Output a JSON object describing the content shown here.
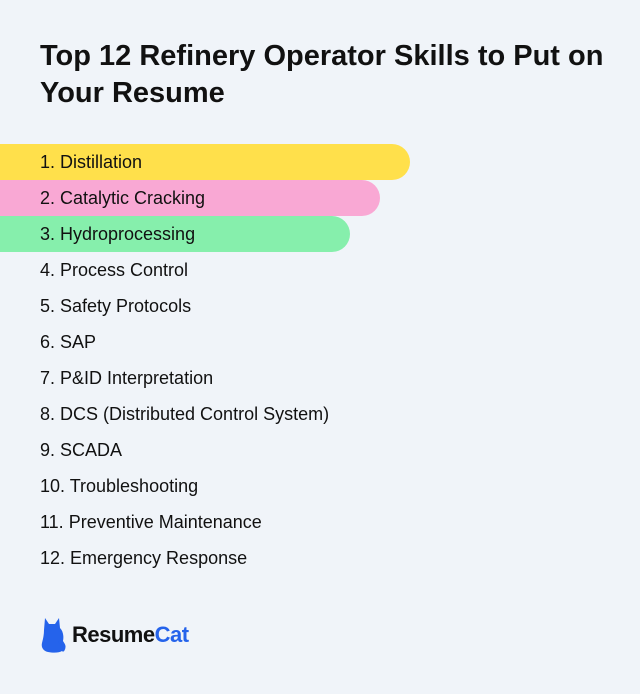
{
  "title": "Top 12 Refinery Operator Skills to Put on Your Resume",
  "skills": [
    "1. Distillation",
    "2. Catalytic Cracking",
    "3. Hydroprocessing",
    "4. Process Control",
    "5. Safety Protocols",
    "6. SAP",
    "7. P&ID Interpretation",
    "8. DCS (Distributed Control System)",
    "9. SCADA",
    "10. Troubleshooting",
    "11. Preventive Maintenance",
    "12. Emergency Response"
  ],
  "highlight_colors": [
    "#ffe04b",
    "#f9a8d4",
    "#86efac"
  ],
  "brand": {
    "part1": "Resume",
    "part2": "Cat",
    "accent_color": "#2563eb",
    "icon": "cat-icon"
  }
}
